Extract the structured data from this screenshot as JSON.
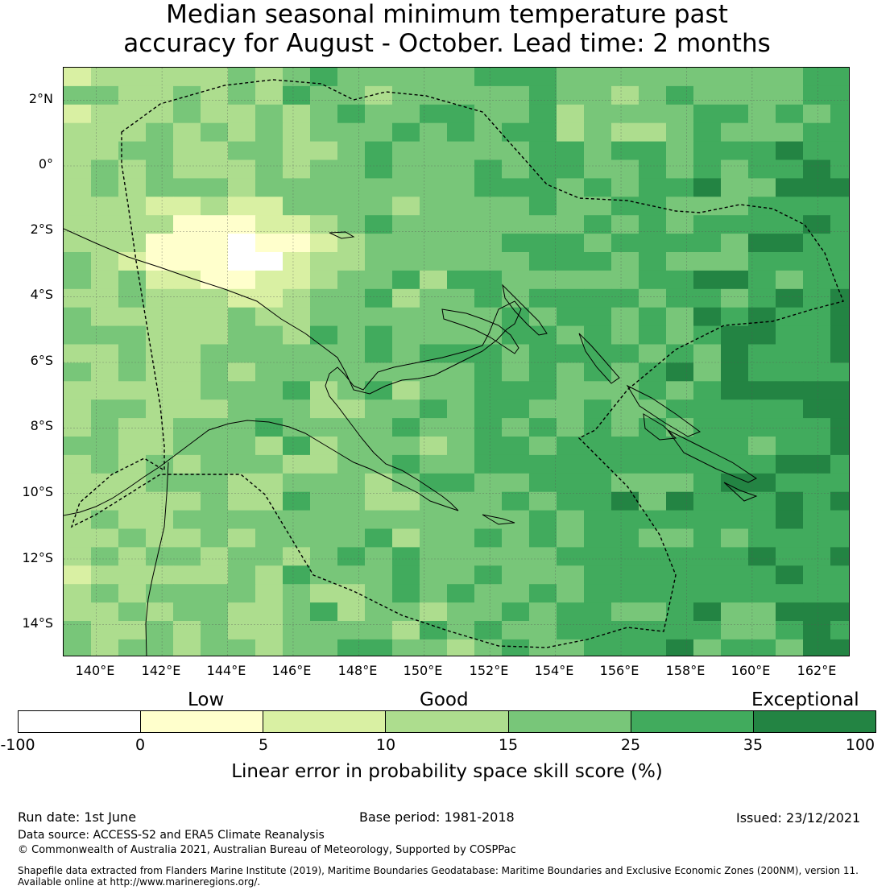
{
  "title": {
    "line1": "Median seasonal minimum temperature past",
    "line2": "accuracy for August - October. Lead time: 2 months"
  },
  "map": {
    "lon_range": [
      139,
      163
    ],
    "lat_range": [
      -15,
      3
    ],
    "lat_ticks": [
      "2°N",
      "0°",
      "2°S",
      "4°S",
      "6°S",
      "8°S",
      "10°S",
      "12°S",
      "14°S"
    ],
    "lon_ticks": [
      "140°E",
      "142°E",
      "144°E",
      "146°E",
      "148°E",
      "150°E",
      "152°E",
      "154°E",
      "156°E",
      "158°E",
      "160°E",
      "162°E"
    ],
    "grid": "on",
    "layers": [
      "skill-score raster (~0.83° cells)",
      "coastlines",
      "EEZ maritime boundary (dashed)"
    ]
  },
  "colorbar": {
    "category_labels": [
      "Low",
      "Good",
      "Exceptional"
    ],
    "tick_labels": [
      "-100",
      "0",
      "5",
      "10",
      "15",
      "25",
      "35",
      "100"
    ],
    "bins": [
      {
        "range": "-100 to 0",
        "color": "#ffffff"
      },
      {
        "range": "0 to 5",
        "color": "#ffffcc"
      },
      {
        "range": "5 to 10",
        "color": "#d9f0a3"
      },
      {
        "range": "10 to 15",
        "color": "#addd8e"
      },
      {
        "range": "15 to 25",
        "color": "#78c679"
      },
      {
        "range": "25 to 35",
        "color": "#41ab5d"
      },
      {
        "range": "35 to 100",
        "color": "#238443"
      }
    ],
    "label": "Linear error in probability space skill score (%)"
  },
  "footer": {
    "run_date": "Run date: 1st June",
    "base_period": "Base period: 1981-2018",
    "issued": "Issued: 23/12/2021",
    "data_source": "Data source: ACCESS-S2 and ERA5 Climate Reanalysis",
    "copyright": "© Commonwealth of Australia 2021, Australian Bureau of Meteorology, Supported by COSPPac",
    "shapefile_line1": "Shapefile data extracted from Flanders Marine Institute (2019), Maritime Boundaries Geodatabase: Maritime Boundaries and Exclusive Economic Zones (200NM), version 11.",
    "shapefile_line2": "Available online at http://www.marineregions.org/."
  }
}
